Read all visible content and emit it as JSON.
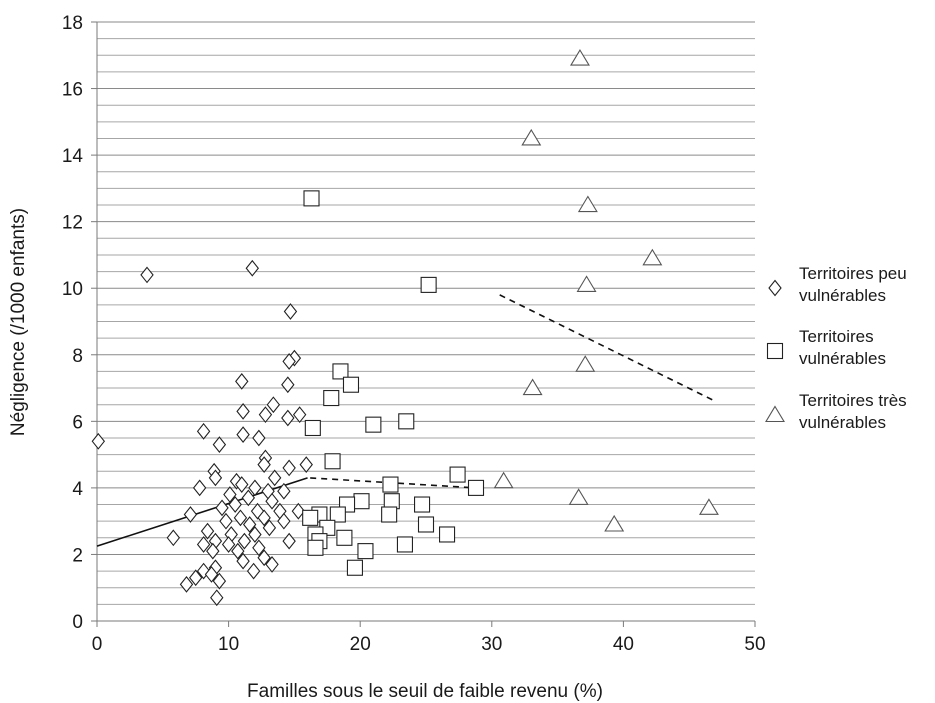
{
  "chart_data": {
    "type": "scatter",
    "xlabel": "Familles sous le seuil de faible revenu (%)",
    "ylabel": "Négligence (/1000 enfants)",
    "xlim": [
      0,
      50
    ],
    "ylim": [
      0,
      18
    ],
    "x_ticks": [
      0,
      10,
      20,
      30,
      40,
      50
    ],
    "y_ticks": [
      0,
      2,
      4,
      6,
      8,
      10,
      12,
      14,
      16,
      18
    ],
    "y_minor_step": 0.5,
    "grid": "horizontal",
    "legend_position": "right",
    "series": [
      {
        "name": "Territoires peu vulnérables",
        "marker": "diamond",
        "points": [
          [
            0.1,
            5.4
          ],
          [
            3.8,
            10.4
          ],
          [
            11.8,
            10.6
          ],
          [
            14.7,
            9.3
          ],
          [
            15.0,
            7.9
          ],
          [
            14.6,
            7.8
          ],
          [
            11.0,
            7.2
          ],
          [
            14.5,
            7.1
          ],
          [
            13.4,
            6.5
          ],
          [
            11.1,
            6.3
          ],
          [
            12.8,
            6.2
          ],
          [
            15.4,
            6.2
          ],
          [
            14.5,
            6.1
          ],
          [
            8.1,
            5.7
          ],
          [
            11.1,
            5.6
          ],
          [
            12.3,
            5.5
          ],
          [
            9.3,
            5.3
          ],
          [
            12.8,
            4.9
          ],
          [
            12.7,
            4.7
          ],
          [
            15.9,
            4.7
          ],
          [
            8.9,
            4.5
          ],
          [
            14.6,
            4.6
          ],
          [
            10.6,
            4.2
          ],
          [
            9.0,
            4.3
          ],
          [
            13.5,
            4.3
          ],
          [
            11.0,
            4.1
          ],
          [
            7.8,
            4.0
          ],
          [
            12.0,
            4.0
          ],
          [
            13.0,
            3.9
          ],
          [
            14.2,
            3.9
          ],
          [
            10.1,
            3.8
          ],
          [
            11.5,
            3.7
          ],
          [
            13.3,
            3.6
          ],
          [
            15.3,
            3.3
          ],
          [
            9.5,
            3.4
          ],
          [
            10.5,
            3.5
          ],
          [
            12.2,
            3.3
          ],
          [
            13.9,
            3.3
          ],
          [
            7.1,
            3.2
          ],
          [
            10.9,
            3.1
          ],
          [
            12.7,
            3.1
          ],
          [
            14.2,
            3.0
          ],
          [
            9.8,
            3.0
          ],
          [
            11.6,
            2.9
          ],
          [
            13.1,
            2.8
          ],
          [
            8.4,
            2.7
          ],
          [
            10.2,
            2.6
          ],
          [
            12.0,
            2.6
          ],
          [
            5.8,
            2.5
          ],
          [
            9.0,
            2.4
          ],
          [
            11.2,
            2.4
          ],
          [
            14.6,
            2.4
          ],
          [
            8.1,
            2.3
          ],
          [
            10.0,
            2.3
          ],
          [
            12.3,
            2.2
          ],
          [
            8.8,
            2.1
          ],
          [
            10.7,
            2.1
          ],
          [
            11.1,
            1.8
          ],
          [
            12.7,
            1.9
          ],
          [
            13.3,
            1.7
          ],
          [
            9.0,
            1.6
          ],
          [
            8.1,
            1.5
          ],
          [
            11.9,
            1.5
          ],
          [
            8.7,
            1.4
          ],
          [
            7.5,
            1.3
          ],
          [
            9.3,
            1.2
          ],
          [
            6.8,
            1.1
          ],
          [
            9.1,
            0.7
          ]
        ]
      },
      {
        "name": "Territoires vulnérables",
        "marker": "square",
        "points": [
          [
            16.3,
            12.7
          ],
          [
            25.2,
            10.1
          ],
          [
            18.5,
            7.5
          ],
          [
            19.3,
            7.1
          ],
          [
            17.8,
            6.7
          ],
          [
            23.5,
            6.0
          ],
          [
            21.0,
            5.9
          ],
          [
            16.4,
            5.8
          ],
          [
            17.9,
            4.8
          ],
          [
            27.4,
            4.4
          ],
          [
            22.3,
            4.1
          ],
          [
            28.8,
            4.0
          ],
          [
            16.9,
            3.2
          ],
          [
            22.4,
            3.6
          ],
          [
            20.1,
            3.6
          ],
          [
            19.0,
            3.5
          ],
          [
            24.7,
            3.5
          ],
          [
            22.2,
            3.2
          ],
          [
            18.3,
            3.2
          ],
          [
            16.2,
            3.1
          ],
          [
            25.0,
            2.9
          ],
          [
            17.5,
            2.8
          ],
          [
            16.6,
            2.6
          ],
          [
            26.6,
            2.6
          ],
          [
            18.8,
            2.5
          ],
          [
            16.9,
            2.4
          ],
          [
            23.4,
            2.3
          ],
          [
            16.6,
            2.2
          ],
          [
            20.4,
            2.1
          ],
          [
            19.6,
            1.6
          ]
        ]
      },
      {
        "name": "Territoires très vulnérables",
        "marker": "triangle",
        "points": [
          [
            36.7,
            16.9
          ],
          [
            33.0,
            14.5
          ],
          [
            37.3,
            12.5
          ],
          [
            42.2,
            10.9
          ],
          [
            37.2,
            10.1
          ],
          [
            37.1,
            7.7
          ],
          [
            33.1,
            7.0
          ],
          [
            30.9,
            4.2
          ],
          [
            36.6,
            3.7
          ],
          [
            46.5,
            3.4
          ],
          [
            39.3,
            2.9
          ]
        ]
      }
    ],
    "trendlines": [
      {
        "series": "Territoires peu vulnérables",
        "style": "solid",
        "points": [
          [
            0,
            2.25
          ],
          [
            16,
            4.3
          ]
        ]
      },
      {
        "series": "Territoires vulnérables",
        "style": "dashed",
        "points": [
          [
            16.2,
            4.3
          ],
          [
            28.8,
            4.0
          ]
        ]
      },
      {
        "series": "Territoires très vulnérables",
        "style": "dashed",
        "points": [
          [
            30.6,
            9.8
          ],
          [
            47.0,
            6.6
          ]
        ]
      }
    ]
  }
}
